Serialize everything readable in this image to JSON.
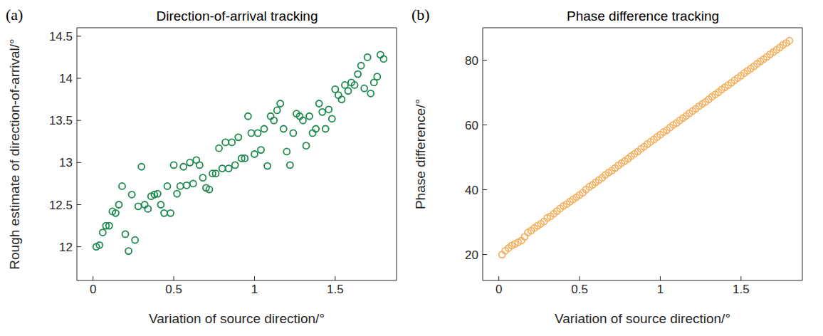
{
  "chart_data": [
    {
      "type": "scatter",
      "title": "Direction-of-arrival tracking",
      "annotations": [
        "(a)"
      ],
      "x_label": "Variation of source direction/°",
      "y_label": "Rough estimate of direction-of-arrival/°",
      "color": "#1b8a4c",
      "marker": "o",
      "xlim": [
        -0.1,
        1.88
      ],
      "xticks": [
        0,
        0.5,
        1,
        1.5
      ],
      "ylim": [
        11.6,
        14.6
      ],
      "yticks": [
        12,
        12.5,
        13,
        13.5,
        14,
        14.5
      ],
      "x": [
        0.02,
        0.04,
        0.06,
        0.08,
        0.1,
        0.12,
        0.14,
        0.16,
        0.18,
        0.2,
        0.22,
        0.24,
        0.26,
        0.28,
        0.3,
        0.32,
        0.34,
        0.36,
        0.38,
        0.4,
        0.42,
        0.44,
        0.46,
        0.48,
        0.5,
        0.52,
        0.54,
        0.56,
        0.58,
        0.6,
        0.62,
        0.64,
        0.66,
        0.68,
        0.7,
        0.72,
        0.74,
        0.76,
        0.78,
        0.8,
        0.82,
        0.84,
        0.86,
        0.88,
        0.9,
        0.92,
        0.94,
        0.96,
        0.98,
        1.0,
        1.02,
        1.04,
        1.06,
        1.08,
        1.1,
        1.12,
        1.14,
        1.16,
        1.18,
        1.2,
        1.22,
        1.24,
        1.26,
        1.28,
        1.3,
        1.32,
        1.34,
        1.36,
        1.38,
        1.4,
        1.42,
        1.44,
        1.46,
        1.48,
        1.5,
        1.52,
        1.54,
        1.56,
        1.58,
        1.6,
        1.62,
        1.64,
        1.66,
        1.68,
        1.7,
        1.72,
        1.74,
        1.76,
        1.78,
        1.8
      ],
      "values": [
        12.0,
        12.02,
        12.17,
        12.25,
        12.25,
        12.42,
        12.4,
        12.5,
        12.72,
        12.15,
        11.95,
        12.62,
        12.08,
        12.48,
        12.95,
        12.5,
        12.45,
        12.6,
        12.62,
        12.63,
        12.5,
        12.4,
        12.72,
        12.4,
        12.97,
        12.63,
        12.72,
        12.95,
        12.73,
        13.0,
        12.75,
        13.03,
        12.97,
        12.82,
        12.7,
        12.68,
        12.87,
        12.87,
        13.17,
        12.93,
        13.24,
        12.93,
        13.24,
        12.97,
        13.3,
        13.05,
        13.05,
        13.55,
        13.35,
        13.1,
        13.35,
        13.15,
        13.4,
        12.96,
        13.55,
        13.5,
        13.62,
        13.7,
        13.4,
        13.13,
        12.97,
        13.35,
        13.58,
        13.55,
        13.5,
        13.2,
        13.55,
        13.35,
        13.4,
        13.7,
        13.6,
        13.4,
        13.63,
        13.52,
        13.87,
        13.8,
        13.75,
        13.92,
        13.85,
        13.95,
        13.92,
        14.05,
        14.15,
        13.88,
        14.25,
        13.82,
        13.95,
        14.02,
        14.28,
        14.23
      ]
    },
    {
      "type": "scatter",
      "title": "Phase difference tracking",
      "annotations": [
        "(b)"
      ],
      "x_label": "Variation of source direction/°",
      "y_label": "Phase difference/°",
      "color": "#f5b060",
      "marker": "o",
      "xlim": [
        -0.1,
        1.88
      ],
      "xticks": [
        0,
        0.5,
        1,
        1.5
      ],
      "ylim": [
        12,
        90
      ],
      "yticks": [
        20,
        40,
        60,
        80
      ],
      "x": [
        0.02,
        0.04,
        0.06,
        0.08,
        0.1,
        0.12,
        0.14,
        0.16,
        0.18,
        0.2,
        0.22,
        0.24,
        0.26,
        0.28,
        0.3,
        0.32,
        0.34,
        0.36,
        0.38,
        0.4,
        0.42,
        0.44,
        0.46,
        0.48,
        0.5,
        0.52,
        0.54,
        0.56,
        0.58,
        0.6,
        0.62,
        0.64,
        0.66,
        0.68,
        0.7,
        0.72,
        0.74,
        0.76,
        0.78,
        0.8,
        0.82,
        0.84,
        0.86,
        0.88,
        0.9,
        0.92,
        0.94,
        0.96,
        0.98,
        1.0,
        1.02,
        1.04,
        1.06,
        1.08,
        1.1,
        1.12,
        1.14,
        1.16,
        1.18,
        1.2,
        1.22,
        1.24,
        1.26,
        1.28,
        1.3,
        1.32,
        1.34,
        1.36,
        1.38,
        1.4,
        1.42,
        1.44,
        1.46,
        1.48,
        1.5,
        1.52,
        1.54,
        1.56,
        1.58,
        1.6,
        1.62,
        1.64,
        1.66,
        1.68,
        1.7,
        1.72,
        1.74,
        1.76,
        1.78,
        1.8
      ],
      "values": [
        20.0,
        21.2,
        22.0,
        22.8,
        23.3,
        23.8,
        24.3,
        25.5,
        26.8,
        27.4,
        28.2,
        28.9,
        29.5,
        30.2,
        31.3,
        31.8,
        32.6,
        33.4,
        34.2,
        35.0,
        35.6,
        36.3,
        37.0,
        37.7,
        38.4,
        39.1,
        40.1,
        40.9,
        41.5,
        42.3,
        43.0,
        43.7,
        44.6,
        45.3,
        45.9,
        46.7,
        47.5,
        48.2,
        48.9,
        49.6,
        50.4,
        51.1,
        51.8,
        52.6,
        53.3,
        54.1,
        54.8,
        55.5,
        56.3,
        57.0,
        57.8,
        58.4,
        59.2,
        60.0,
        60.6,
        61.4,
        62.1,
        62.8,
        63.6,
        64.3,
        65.0,
        65.8,
        66.5,
        67.1,
        67.9,
        68.7,
        69.4,
        70.1,
        70.9,
        71.6,
        72.3,
        73.0,
        73.8,
        74.5,
        75.2,
        76.0,
        76.7,
        77.4,
        78.1,
        78.9,
        79.6,
        80.3,
        81.0,
        81.8,
        82.5,
        83.2,
        83.9,
        84.7,
        85.3,
        86.0
      ]
    }
  ]
}
